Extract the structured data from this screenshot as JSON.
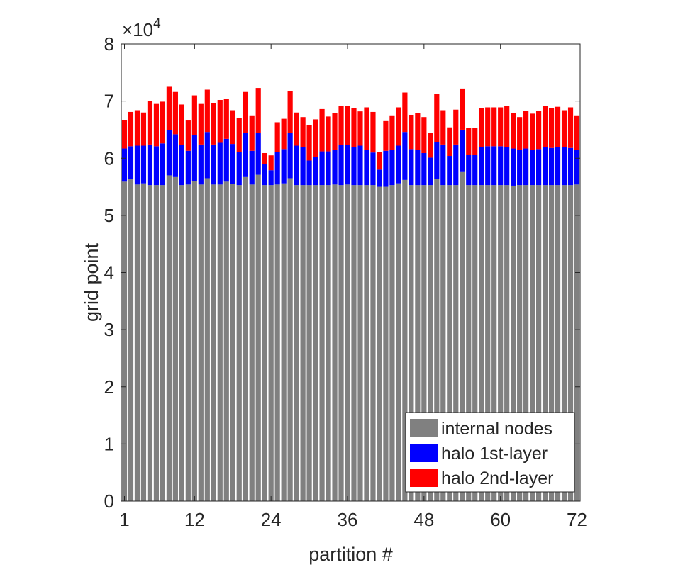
{
  "chart_data": {
    "type": "bar",
    "stacked": true,
    "title": "",
    "xlabel": "partition #",
    "ylabel": "grid point",
    "y_exponent_label": "×10",
    "y_exponent_power": "4",
    "y_scale_factor": 10000,
    "ylim": [
      0,
      80000
    ],
    "xlim": [
      0.5,
      72.5
    ],
    "xticks": [
      1,
      12,
      24,
      36,
      48,
      60,
      72
    ],
    "xtick_labels": [
      "1",
      "12",
      "24",
      "36",
      "48",
      "60",
      "72"
    ],
    "yticks": [
      0,
      10000,
      20000,
      30000,
      40000,
      50000,
      60000,
      70000,
      80000
    ],
    "ytick_labels": [
      "0",
      "1",
      "2",
      "3",
      "4",
      "5",
      "6",
      "7",
      "8"
    ],
    "grid": false,
    "legend_position": "bottom-right",
    "x": [
      1,
      2,
      3,
      4,
      5,
      6,
      7,
      8,
      9,
      10,
      11,
      12,
      13,
      14,
      15,
      16,
      17,
      18,
      19,
      20,
      21,
      22,
      23,
      24,
      25,
      26,
      27,
      28,
      29,
      30,
      31,
      32,
      33,
      34,
      35,
      36,
      37,
      38,
      39,
      40,
      41,
      42,
      43,
      44,
      45,
      46,
      47,
      48,
      49,
      50,
      51,
      52,
      53,
      54,
      55,
      56,
      57,
      58,
      59,
      60,
      61,
      62,
      63,
      64,
      65,
      66,
      67,
      68,
      69,
      70,
      71,
      72
    ],
    "series": [
      {
        "name": "internal nodes",
        "color": "#808080",
        "values": [
          55900,
          56300,
          55400,
          55600,
          55300,
          55300,
          55300,
          57000,
          56700,
          55300,
          55400,
          56000,
          55400,
          56500,
          55400,
          55400,
          55900,
          55500,
          55300,
          56700,
          55400,
          57100,
          55300,
          55300,
          55400,
          55600,
          56500,
          55300,
          55300,
          55300,
          55300,
          55300,
          55300,
          55400,
          55300,
          55400,
          55300,
          55300,
          55300,
          55300,
          55000,
          55000,
          55300,
          55600,
          56200,
          55300,
          55300,
          55300,
          55300,
          56400,
          55300,
          55300,
          55300,
          57700,
          55300,
          55300,
          55300,
          55300,
          55300,
          55300,
          55300,
          55200,
          55300,
          55300,
          55300,
          55300,
          55300,
          55300,
          55300,
          55300,
          55300,
          55400
        ]
      },
      {
        "name": "halo 1st-layer",
        "color": "#0000ff",
        "values": [
          5800,
          5800,
          6800,
          6600,
          7100,
          6800,
          7300,
          7900,
          7500,
          7000,
          5900,
          8000,
          7000,
          8100,
          7000,
          7300,
          7500,
          7000,
          5800,
          7700,
          5900,
          7300,
          3700,
          2600,
          5700,
          6000,
          7900,
          6900,
          6700,
          4300,
          4900,
          5900,
          5900,
          6100,
          7000,
          6900,
          6700,
          6900,
          6200,
          5700,
          3000,
          6300,
          6100,
          6600,
          8400,
          6300,
          6200,
          5600,
          4800,
          6400,
          7100,
          5100,
          7100,
          7300,
          5300,
          5300,
          6600,
          6800,
          6800,
          6800,
          6700,
          6500,
          6100,
          6400,
          6100,
          6300,
          6600,
          6500,
          6600,
          6700,
          6500,
          6000
        ]
      },
      {
        "name": "halo 2nd-layer",
        "color": "#ff0000",
        "values": [
          5000,
          6000,
          6200,
          5800,
          7600,
          7400,
          7300,
          7600,
          7400,
          7100,
          5300,
          7000,
          7100,
          7400,
          7300,
          7500,
          7000,
          5900,
          5900,
          7200,
          6200,
          7900,
          1900,
          2600,
          5200,
          5300,
          7300,
          5800,
          5200,
          6200,
          6600,
          7400,
          6100,
          6400,
          6900,
          6800,
          6800,
          6000,
          7400,
          7100,
          3100,
          5200,
          6100,
          6700,
          6900,
          6000,
          6400,
          6300,
          4300,
          8500,
          6000,
          5000,
          6100,
          7200,
          4700,
          4700,
          6900,
          6800,
          6800,
          6800,
          7200,
          6200,
          5800,
          6600,
          6400,
          6700,
          7200,
          7000,
          7100,
          6400,
          7100,
          6100
        ]
      }
    ]
  }
}
